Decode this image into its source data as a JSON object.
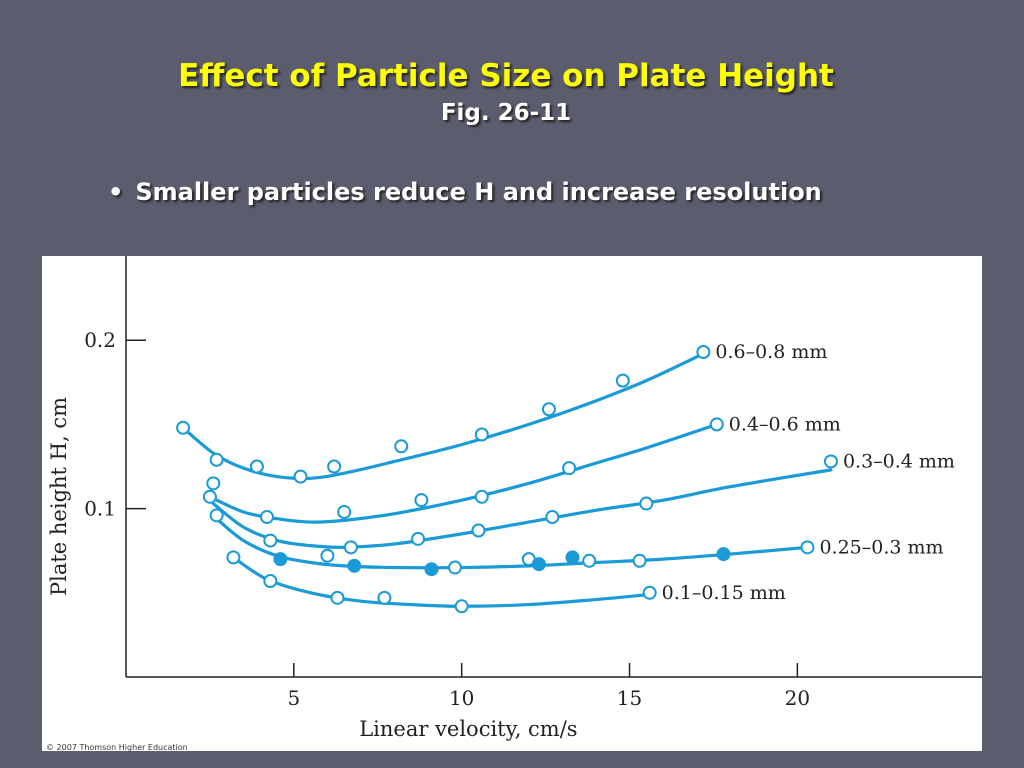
{
  "slide": {
    "title": "Effect of Particle Size on Plate Height",
    "subtitle": "Fig. 26-11",
    "bullet_marker": "•",
    "bullet": "Smaller particles reduce H and increase resolution"
  },
  "figure": {
    "copyright": "© 2007 Thomson Higher Education"
  },
  "colors": {
    "background": "#5b5d6e",
    "title": "#ffff00",
    "series": "#1a9ad6"
  },
  "chart_data": {
    "type": "line",
    "xlabel": "Linear velocity, cm/s",
    "ylabel": "Plate height H, cm",
    "xlim": [
      0,
      25.5
    ],
    "ylim": [
      0,
      0.25
    ],
    "xticks": [
      5,
      10,
      15,
      20
    ],
    "yticks": [
      0.1,
      0.2
    ],
    "xtick_labels": [
      "5",
      "10",
      "15",
      "20"
    ],
    "ytick_labels": [
      "0.1",
      "0.2"
    ],
    "grid": false,
    "legend": "inline labels at line ends",
    "series": [
      {
        "name": "0.6–0.8 mm",
        "curve": [
          [
            1.7,
            0.148
          ],
          [
            2.6,
            0.133
          ],
          [
            3.5,
            0.124
          ],
          [
            4.5,
            0.119
          ],
          [
            5.5,
            0.118
          ],
          [
            6.5,
            0.121
          ],
          [
            8,
            0.128
          ],
          [
            10,
            0.138
          ],
          [
            12,
            0.15
          ],
          [
            14,
            0.164
          ],
          [
            15.5,
            0.176
          ],
          [
            17.2,
            0.192
          ]
        ],
        "points": [
          [
            1.7,
            0.148,
            false
          ],
          [
            2.7,
            0.129,
            false
          ],
          [
            3.9,
            0.125,
            false
          ],
          [
            5.2,
            0.119,
            false
          ],
          [
            6.2,
            0.125,
            false
          ],
          [
            8.2,
            0.137,
            false
          ],
          [
            10.6,
            0.144,
            false
          ],
          [
            12.6,
            0.159,
            false
          ],
          [
            14.8,
            0.176,
            false
          ],
          [
            17.2,
            0.193,
            false
          ]
        ]
      },
      {
        "name": "0.4–0.6 mm",
        "curve": [
          [
            2.5,
            0.107
          ],
          [
            3.5,
            0.098
          ],
          [
            4.5,
            0.094
          ],
          [
            5.5,
            0.092
          ],
          [
            6.5,
            0.093
          ],
          [
            8,
            0.097
          ],
          [
            10,
            0.105
          ],
          [
            12,
            0.115
          ],
          [
            14,
            0.127
          ],
          [
            15.5,
            0.136
          ],
          [
            17.6,
            0.15
          ]
        ],
        "points": [
          [
            2.5,
            0.107,
            false
          ],
          [
            4.2,
            0.095,
            false
          ],
          [
            6.5,
            0.098,
            false
          ],
          [
            8.8,
            0.105,
            false
          ],
          [
            10.6,
            0.107,
            false
          ],
          [
            13.2,
            0.124,
            false
          ],
          [
            17.6,
            0.15,
            false
          ]
        ]
      },
      {
        "name": "0.3–0.4 mm",
        "curve": [
          [
            2.6,
            0.103
          ],
          [
            3.5,
            0.089
          ],
          [
            4.5,
            0.081
          ],
          [
            5.5,
            0.078
          ],
          [
            6.5,
            0.077
          ],
          [
            8,
            0.079
          ],
          [
            10,
            0.085
          ],
          [
            12,
            0.092
          ],
          [
            14,
            0.099
          ],
          [
            16,
            0.105
          ],
          [
            18,
            0.113
          ],
          [
            21,
            0.123
          ]
        ],
        "points": [
          [
            2.6,
            0.115,
            false
          ],
          [
            4.3,
            0.081,
            false
          ],
          [
            6.7,
            0.077,
            false
          ],
          [
            8.7,
            0.082,
            false
          ],
          [
            10.5,
            0.087,
            false
          ],
          [
            12.7,
            0.095,
            false
          ],
          [
            15.5,
            0.103,
            false
          ],
          [
            21,
            0.128,
            false
          ]
        ]
      },
      {
        "name": "0.25–0.3 mm",
        "curve": [
          [
            2.7,
            0.094
          ],
          [
            3.5,
            0.081
          ],
          [
            4.5,
            0.072
          ],
          [
            5.5,
            0.068
          ],
          [
            6.5,
            0.066
          ],
          [
            8,
            0.065
          ],
          [
            10,
            0.065
          ],
          [
            12,
            0.066
          ],
          [
            14,
            0.068
          ],
          [
            16,
            0.07
          ],
          [
            18,
            0.073
          ],
          [
            20.3,
            0.077
          ]
        ],
        "points": [
          [
            2.7,
            0.096,
            false
          ],
          [
            4.6,
            0.07,
            true
          ],
          [
            6,
            0.072,
            false
          ],
          [
            6.8,
            0.066,
            true
          ],
          [
            9.1,
            0.064,
            true
          ],
          [
            9.8,
            0.065,
            false
          ],
          [
            12,
            0.07,
            false
          ],
          [
            12.3,
            0.067,
            true
          ],
          [
            13.3,
            0.071,
            true
          ],
          [
            13.8,
            0.069,
            false
          ],
          [
            15.3,
            0.069,
            false
          ],
          [
            17.8,
            0.073,
            true
          ],
          [
            20.3,
            0.077,
            false
          ]
        ]
      },
      {
        "name": "0.1–0.15 mm",
        "curve": [
          [
            3.2,
            0.071
          ],
          [
            4.2,
            0.058
          ],
          [
            5.5,
            0.05
          ],
          [
            7,
            0.045
          ],
          [
            8.5,
            0.043
          ],
          [
            10,
            0.042
          ],
          [
            12,
            0.043
          ],
          [
            14,
            0.046
          ],
          [
            15.6,
            0.049
          ]
        ],
        "points": [
          [
            3.2,
            0.071,
            false
          ],
          [
            4.3,
            0.057,
            false
          ],
          [
            6.3,
            0.047,
            false
          ],
          [
            7.7,
            0.047,
            false
          ],
          [
            10,
            0.042,
            false
          ],
          [
            15.6,
            0.05,
            false
          ]
        ]
      }
    ]
  }
}
